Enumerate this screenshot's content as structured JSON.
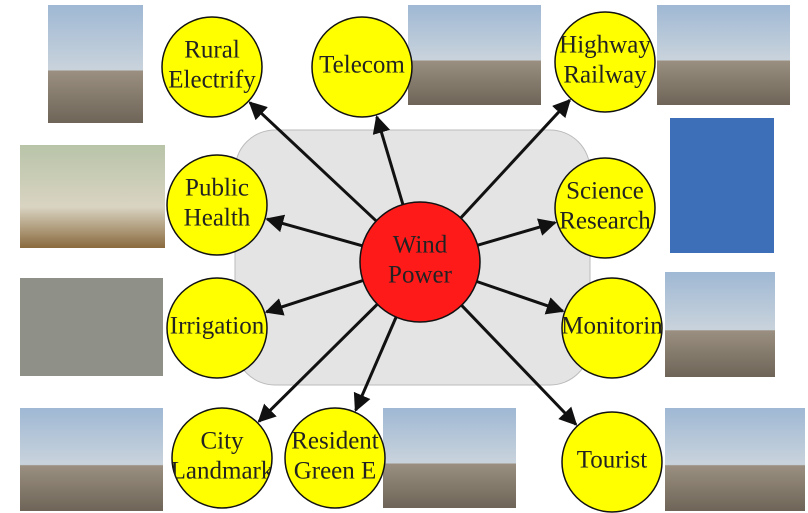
{
  "center": {
    "lines": [
      "Wind",
      "Power"
    ]
  },
  "nodes": [
    {
      "lines": [
        "Rural",
        "Electrify"
      ]
    },
    {
      "lines": [
        "Telecom"
      ]
    },
    {
      "lines": [
        "Highway",
        "Railway"
      ]
    },
    {
      "lines": [
        "Public",
        "Health"
      ]
    },
    {
      "lines": [
        "Science",
        "Research"
      ]
    },
    {
      "lines": [
        "Irrigation"
      ]
    },
    {
      "lines": [
        "Monitorin"
      ]
    },
    {
      "lines": [
        "City",
        "Landmark"
      ]
    },
    {
      "lines": [
        "Resident",
        "Green E"
      ]
    },
    {
      "lines": [
        "Tourist"
      ]
    }
  ]
}
